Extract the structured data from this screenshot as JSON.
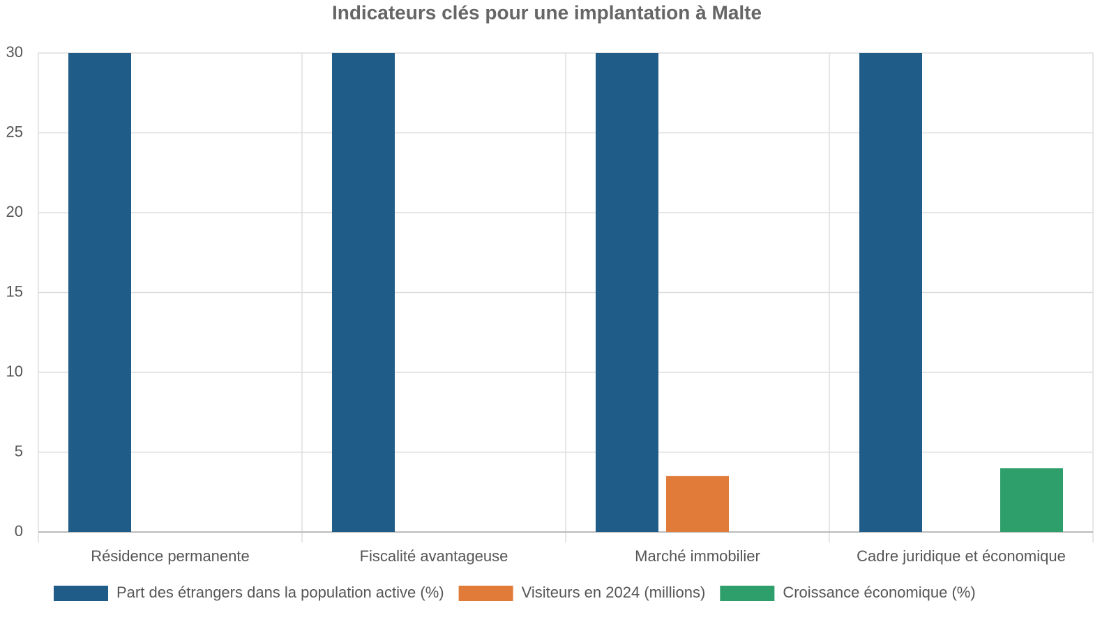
{
  "chart_data": {
    "type": "bar",
    "title": "Indicateurs clés pour une implantation à Malte",
    "categories": [
      "Résidence permanente",
      "Fiscalité avantageuse",
      "Marché immobilier",
      "Cadre juridique et économique"
    ],
    "series": [
      {
        "name": "Part des étrangers dans la population active (%)",
        "color": "#1f5c87",
        "values": [
          30,
          30,
          30,
          30
        ]
      },
      {
        "name": "Visiteurs en 2024 (millions)",
        "color": "#e07b39",
        "values": [
          null,
          null,
          3.5,
          null
        ]
      },
      {
        "name": "Croissance économique (%)",
        "color": "#2e9e6b",
        "values": [
          null,
          null,
          null,
          4
        ]
      }
    ],
    "ylim": [
      0,
      30
    ],
    "yticks": [
      0,
      5,
      10,
      15,
      20,
      25,
      30
    ],
    "grid": true,
    "legend": "bottom"
  }
}
